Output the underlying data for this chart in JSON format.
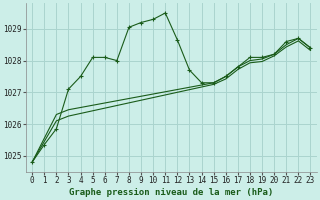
{
  "title": "Graphe pression niveau de la mer (hPa)",
  "background_color": "#cceee8",
  "grid_color": "#aad4ce",
  "line_color": "#1a5c1a",
  "xlim": [
    -0.5,
    23.5
  ],
  "ylim": [
    1024.5,
    1029.8
  ],
  "yticks": [
    1025,
    1026,
    1027,
    1028,
    1029
  ],
  "xticks": [
    0,
    1,
    2,
    3,
    4,
    5,
    6,
    7,
    8,
    9,
    10,
    11,
    12,
    13,
    14,
    15,
    16,
    17,
    18,
    19,
    20,
    21,
    22,
    23
  ],
  "series1_x": [
    0,
    1,
    2,
    3,
    4,
    5,
    6,
    7,
    8,
    9,
    10,
    11,
    12,
    13,
    14,
    15,
    16,
    17,
    18,
    19,
    20,
    21,
    22,
    23
  ],
  "series1_y": [
    1024.8,
    1025.35,
    1025.85,
    1027.1,
    1027.5,
    1028.1,
    1028.1,
    1028.0,
    1029.05,
    1029.2,
    1029.3,
    1029.5,
    1028.65,
    1027.7,
    1027.3,
    1027.3,
    1027.5,
    1027.8,
    1028.1,
    1028.1,
    1028.2,
    1028.6,
    1028.7,
    1028.4
  ],
  "series2_x": [
    0,
    2,
    3,
    15,
    16,
    17,
    18,
    19,
    20,
    21,
    22,
    23
  ],
  "series2_y": [
    1024.8,
    1026.3,
    1026.45,
    1027.3,
    1027.5,
    1027.8,
    1028.0,
    1028.05,
    1028.2,
    1028.5,
    1028.7,
    1028.4
  ],
  "series3_x": [
    0,
    2,
    3,
    15,
    16,
    17,
    18,
    19,
    20,
    21,
    22,
    23
  ],
  "series3_y": [
    1024.8,
    1026.1,
    1026.25,
    1027.25,
    1027.42,
    1027.72,
    1027.93,
    1027.97,
    1028.15,
    1028.43,
    1028.62,
    1028.32
  ],
  "xlabel_fontsize": 6.5,
  "tick_fontsize": 5.5,
  "figwidth": 3.2,
  "figheight": 2.0,
  "dpi": 100
}
